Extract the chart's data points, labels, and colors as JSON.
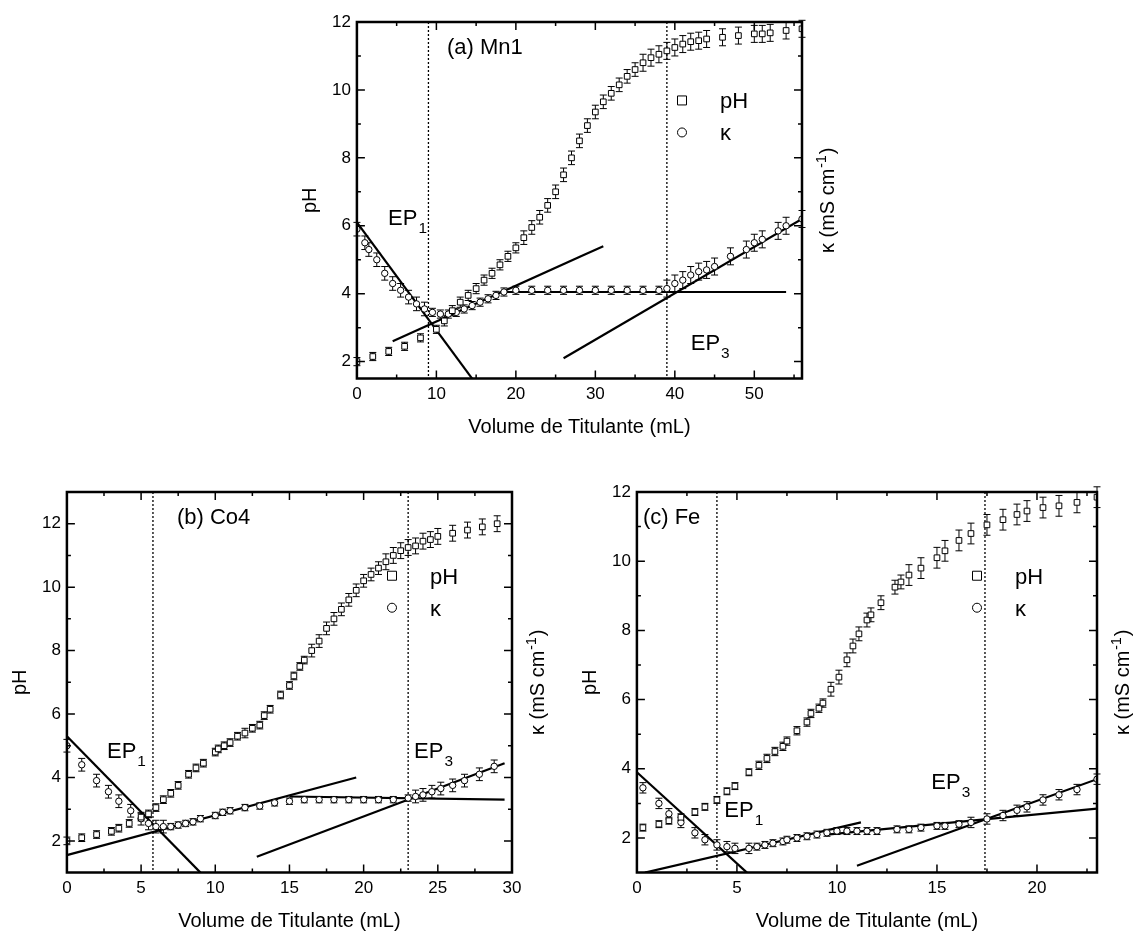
{
  "chart_data": [
    {
      "type": "scatter",
      "title": "(a) Mn1",
      "xlabel": "Volume de Titulante (mL)",
      "ylabel": "pH",
      "y2label": "κ (mS cm$^{-1}$)",
      "legend": "right",
      "xlim": [
        0,
        56
      ],
      "ylim": [
        1.5,
        12
      ],
      "xticks": [
        0,
        {
          "value": 5,
          "label": null
        },
        10,
        {
          "value": 15,
          "label": null
        },
        20,
        {
          "value": 25,
          "label": null
        },
        30,
        {
          "value": 35,
          "label": null
        },
        40,
        {
          "value": 45,
          "label": null
        },
        50,
        {
          "value": 55,
          "label": null
        }
      ],
      "yticks": [
        2,
        {
          "value": 3,
          "label": null
        },
        4,
        {
          "value": 5,
          "label": null
        },
        6,
        {
          "value": 7,
          "label": null
        },
        8,
        {
          "value": 9,
          "label": null
        },
        10,
        {
          "value": 11,
          "label": null
        },
        12
      ],
      "series": [
        {
          "name": "pH",
          "type": "scatter",
          "marker": "square",
          "color": "#000000",
          "x": [
            0,
            2,
            4,
            6,
            8,
            10,
            11,
            12,
            13,
            14,
            15,
            16,
            17,
            18,
            19,
            20,
            21,
            22,
            23,
            24,
            25,
            26,
            27,
            28,
            29,
            30,
            31,
            32,
            33,
            34,
            35,
            36,
            37,
            38,
            39,
            40,
            41,
            42,
            43,
            44,
            46,
            48,
            50,
            51,
            52,
            54,
            56
          ],
          "values": [
            2.0,
            2.15,
            2.3,
            2.45,
            2.7,
            2.95,
            3.2,
            3.5,
            3.75,
            3.95,
            4.15,
            4.4,
            4.6,
            4.85,
            5.1,
            5.35,
            5.65,
            5.95,
            6.25,
            6.6,
            7.0,
            7.5,
            8.0,
            8.5,
            8.95,
            9.35,
            9.65,
            9.9,
            10.15,
            10.4,
            10.6,
            10.8,
            10.95,
            11.05,
            11.15,
            11.25,
            11.35,
            11.42,
            11.45,
            11.5,
            11.55,
            11.6,
            11.65,
            11.65,
            11.68,
            11.75,
            11.8
          ],
          "errors": [
            0.12,
            0.12,
            0.12,
            0.12,
            0.12,
            0.12,
            0.15,
            0.15,
            0.15,
            0.15,
            0.15,
            0.15,
            0.15,
            0.15,
            0.15,
            0.15,
            0.2,
            0.2,
            0.2,
            0.2,
            0.2,
            0.2,
            0.2,
            0.2,
            0.2,
            0.2,
            0.2,
            0.2,
            0.2,
            0.2,
            0.2,
            0.25,
            0.25,
            0.25,
            0.25,
            0.25,
            0.25,
            0.25,
            0.25,
            0.25,
            0.25,
            0.25,
            0.25,
            0.25,
            0.25,
            0.25,
            0.25
          ]
        },
        {
          "name": "κ",
          "type": "scatter",
          "marker": "circle",
          "color": "#000000",
          "x": [
            0,
            1,
            1.5,
            2.5,
            3.5,
            4.5,
            5.5,
            6.5,
            7.5,
            8.5,
            9.5,
            10.5,
            11.5,
            12.5,
            13.5,
            14.5,
            15.5,
            16.5,
            17.5,
            18.5,
            20,
            22,
            24,
            26,
            28,
            30,
            32,
            34,
            36,
            38,
            39,
            40,
            41,
            42,
            43,
            44,
            45,
            47,
            49,
            50,
            51,
            53,
            54,
            56
          ],
          "values": [
            5.9,
            5.5,
            5.3,
            5.0,
            4.6,
            4.3,
            4.1,
            3.9,
            3.7,
            3.55,
            3.45,
            3.4,
            3.4,
            3.45,
            3.55,
            3.65,
            3.75,
            3.85,
            3.95,
            4.05,
            4.1,
            4.1,
            4.1,
            4.1,
            4.1,
            4.1,
            4.1,
            4.1,
            4.1,
            4.1,
            4.15,
            4.3,
            4.4,
            4.55,
            4.65,
            4.7,
            4.8,
            5.1,
            5.3,
            5.5,
            5.6,
            5.85,
            6.0,
            6.2
          ],
          "errors": [
            0.2,
            0.2,
            0.2,
            0.2,
            0.2,
            0.2,
            0.2,
            0.2,
            0.2,
            0.2,
            0.12,
            0.12,
            0.12,
            0.12,
            0.12,
            0.12,
            0.12,
            0.12,
            0.12,
            0.12,
            0.12,
            0.12,
            0.12,
            0.12,
            0.12,
            0.12,
            0.12,
            0.12,
            0.12,
            0.12,
            0.25,
            0.25,
            0.25,
            0.25,
            0.25,
            0.25,
            0.25,
            0.25,
            0.25,
            0.25,
            0.25,
            0.25,
            0.25,
            0.25
          ]
        },
        {
          "type": "line",
          "color": "#000000",
          "x": [
            0,
            14.5
          ],
          "values": [
            6.1,
            1.5
          ]
        },
        {
          "type": "line",
          "color": "#000000",
          "x": [
            4.5,
            31
          ],
          "values": [
            2.6,
            5.4
          ]
        },
        {
          "type": "line",
          "color": "#000000",
          "x": [
            18,
            54
          ],
          "values": [
            4.05,
            4.05
          ]
        },
        {
          "type": "line",
          "color": "#000000",
          "x": [
            26,
            56
          ],
          "values": [
            2.1,
            6.2
          ]
        }
      ],
      "ref_lines": [
        {
          "axis": "x",
          "value": 9,
          "line_style": "dotted",
          "color": "#000000"
        },
        {
          "axis": "x",
          "value": 39,
          "line_style": "dotted",
          "color": "#000000"
        }
      ],
      "annotations": [
        "EP$_{1}$",
        "EP$_{3}$"
      ]
    },
    {
      "type": "scatter",
      "title": "(b) Co4",
      "xlabel": "Volume de Titulante (mL)",
      "ylabel": "pH",
      "y2label": "κ (mS cm$^{-1}$)",
      "legend": "right",
      "xlim": [
        0,
        30
      ],
      "ylim": [
        1,
        13
      ],
      "xticks": [
        0,
        {
          "value": 2.5,
          "label": null
        },
        5,
        {
          "value": 7.5,
          "label": null
        },
        10,
        {
          "value": 12.5,
          "label": null
        },
        15,
        {
          "value": 17.5,
          "label": null
        },
        20,
        {
          "value": 22.5,
          "label": null
        },
        25,
        {
          "value": 27.5,
          "label": null
        },
        30
      ],
      "yticks": [
        2,
        {
          "value": 3,
          "label": null
        },
        4,
        {
          "value": 5,
          "label": null
        },
        6,
        {
          "value": 7,
          "label": null
        },
        8,
        {
          "value": 9,
          "label": null
        },
        10,
        {
          "value": 11,
          "label": null
        },
        12
      ],
      "series": [
        {
          "name": "pH",
          "type": "scatter",
          "marker": "square",
          "color": "#000000",
          "x": [
            0,
            1,
            2,
            3,
            3.5,
            4.2,
            5,
            5.5,
            6,
            6.5,
            7,
            7.5,
            8.2,
            8.7,
            9.2,
            10,
            10.2,
            10.6,
            11,
            11.5,
            12,
            12.5,
            13,
            13.3,
            13.7,
            14.4,
            15,
            15.3,
            15.7,
            16,
            16.5,
            17,
            17.5,
            18,
            18.5,
            19,
            19.5,
            20,
            20.5,
            21,
            21.5,
            22,
            22.5,
            23,
            23.5,
            24,
            24.5,
            25,
            26,
            27,
            28,
            29
          ],
          "values": [
            2.0,
            2.1,
            2.2,
            2.3,
            2.4,
            2.55,
            2.75,
            2.85,
            3.05,
            3.3,
            3.5,
            3.75,
            4.1,
            4.3,
            4.45,
            4.8,
            4.9,
            5.0,
            5.1,
            5.3,
            5.4,
            5.55,
            5.65,
            5.95,
            6.15,
            6.6,
            6.9,
            7.2,
            7.5,
            7.7,
            8.0,
            8.3,
            8.7,
            9.0,
            9.3,
            9.6,
            9.9,
            10.2,
            10.4,
            10.6,
            10.8,
            11.0,
            11.15,
            11.25,
            11.3,
            11.45,
            11.5,
            11.6,
            11.7,
            11.8,
            11.9,
            12.0
          ],
          "errors": [
            0.12,
            0.12,
            0.12,
            0.12,
            0.12,
            0.12,
            0.12,
            0.12,
            0.12,
            0.12,
            0.12,
            0.12,
            0.12,
            0.12,
            0.12,
            0.12,
            0.12,
            0.12,
            0.12,
            0.12,
            0.15,
            0.12,
            0.12,
            0.12,
            0.12,
            0.12,
            0.12,
            0.12,
            0.12,
            0.12,
            0.2,
            0.2,
            0.2,
            0.2,
            0.2,
            0.2,
            0.2,
            0.2,
            0.2,
            0.2,
            0.25,
            0.25,
            0.25,
            0.25,
            0.25,
            0.25,
            0.25,
            0.25,
            0.25,
            0.25,
            0.25,
            0.25
          ]
        },
        {
          "name": "κ",
          "type": "scatter",
          "marker": "circle",
          "color": "#000000",
          "x": [
            0,
            1,
            2,
            2.8,
            3.5,
            4.3,
            5,
            5.5,
            6,
            6.5,
            7,
            7.5,
            8,
            8.5,
            9,
            10,
            10.5,
            11,
            12,
            13,
            14,
            15,
            16,
            17,
            18,
            19,
            20,
            21,
            22,
            23,
            23.5,
            24,
            24.6,
            25.2,
            26,
            26.8,
            27.8,
            28.8
          ],
          "values": [
            5.0,
            4.4,
            3.9,
            3.55,
            3.25,
            2.95,
            2.7,
            2.55,
            2.45,
            2.45,
            2.45,
            2.5,
            2.55,
            2.6,
            2.7,
            2.8,
            2.9,
            2.95,
            3.05,
            3.1,
            3.2,
            3.25,
            3.3,
            3.3,
            3.3,
            3.3,
            3.3,
            3.3,
            3.3,
            3.35,
            3.4,
            3.45,
            3.55,
            3.65,
            3.75,
            3.9,
            4.1,
            4.35
          ],
          "errors": [
            0.2,
            0.2,
            0.2,
            0.2,
            0.2,
            0.2,
            0.2,
            0.2,
            0.2,
            0.2,
            0.1,
            0.1,
            0.1,
            0.1,
            0.1,
            0.1,
            0.1,
            0.1,
            0.1,
            0.1,
            0.1,
            0.1,
            0.1,
            0.1,
            0.1,
            0.1,
            0.1,
            0.1,
            0.1,
            0.1,
            0.2,
            0.2,
            0.2,
            0.2,
            0.2,
            0.2,
            0.2,
            0.2
          ]
        },
        {
          "type": "line",
          "color": "#000000",
          "x": [
            0,
            9
          ],
          "values": [
            5.3,
            1
          ]
        },
        {
          "type": "line",
          "color": "#000000",
          "x": [
            0,
            19.5
          ],
          "values": [
            1.55,
            4.0
          ]
        },
        {
          "type": "line",
          "color": "#000000",
          "x": [
            15,
            29.5
          ],
          "values": [
            3.4,
            3.3
          ]
        },
        {
          "type": "line",
          "color": "#000000",
          "x": [
            12.8,
            29.5
          ],
          "values": [
            1.5,
            4.45
          ]
        }
      ],
      "ref_lines": [
        {
          "axis": "x",
          "value": 5.8,
          "line_style": "dotted",
          "color": "#000000"
        },
        {
          "axis": "x",
          "value": 23,
          "line_style": "dotted",
          "color": "#000000"
        }
      ],
      "annotations": [
        "EP$_{1}$",
        "EP$_{3}$"
      ]
    },
    {
      "type": "scatter",
      "title": "(c) Fe",
      "xlabel": "Volume de Titulante (mL)",
      "ylabel": "pH",
      "y2label": "κ (mS cm$^{-1}$)",
      "legend": "right",
      "xlim": [
        0,
        23
      ],
      "ylim": [
        1,
        12
      ],
      "xticks": [
        0,
        {
          "value": 2.5,
          "label": null
        },
        5,
        {
          "value": 7.5,
          "label": null
        },
        10,
        {
          "value": 12.5,
          "label": null
        },
        15,
        {
          "value": 17.5,
          "label": null
        },
        20,
        {
          "value": 22.5,
          "label": null
        }
      ],
      "yticks": [
        2,
        {
          "value": 3,
          "label": null
        },
        4,
        {
          "value": 5,
          "label": null
        },
        6,
        {
          "value": 7,
          "label": null
        },
        8,
        {
          "value": 9,
          "label": null
        },
        10,
        {
          "value": 11,
          "label": null
        },
        12
      ],
      "series": [
        {
          "name": "pH",
          "type": "scatter",
          "marker": "square",
          "color": "#000000",
          "x": [
            0.3,
            1.1,
            1.6,
            2.2,
            2.9,
            3.4,
            4,
            4.5,
            4.9,
            5.6,
            6.1,
            6.5,
            6.9,
            7.3,
            7.5,
            8,
            8.5,
            8.7,
            9.1,
            9.3,
            9.7,
            10.1,
            10.5,
            10.8,
            11.1,
            11.5,
            11.7,
            12.2,
            12.9,
            13.2,
            13.6,
            14.2,
            15,
            15.4,
            16.1,
            16.7,
            17.5,
            18.3,
            19,
            19.5,
            20.3,
            21.1,
            22,
            23
          ],
          "values": [
            2.3,
            2.4,
            2.5,
            2.6,
            2.75,
            2.9,
            3.1,
            3.35,
            3.5,
            3.9,
            4.1,
            4.3,
            4.5,
            4.65,
            4.8,
            5.1,
            5.35,
            5.6,
            5.75,
            5.9,
            6.3,
            6.65,
            7.15,
            7.55,
            7.9,
            8.3,
            8.45,
            8.8,
            9.25,
            9.4,
            9.6,
            9.8,
            10.1,
            10.3,
            10.6,
            10.8,
            11.05,
            11.2,
            11.35,
            11.45,
            11.55,
            11.6,
            11.7,
            11.85
          ],
          "errors": [
            0.1,
            0.1,
            0.1,
            0.1,
            0.1,
            0.1,
            0.1,
            0.1,
            0.1,
            0.1,
            0.12,
            0.12,
            0.12,
            0.12,
            0.12,
            0.12,
            0.12,
            0.12,
            0.12,
            0.12,
            0.2,
            0.2,
            0.2,
            0.2,
            0.2,
            0.2,
            0.2,
            0.2,
            0.2,
            0.2,
            0.3,
            0.3,
            0.3,
            0.3,
            0.3,
            0.3,
            0.3,
            0.3,
            0.3,
            0.3,
            0.3,
            0.3,
            0.3,
            0.3
          ]
        },
        {
          "name": "κ",
          "type": "scatter",
          "marker": "circle",
          "color": "#000000",
          "x": [
            0.3,
            1.1,
            1.6,
            2.2,
            2.9,
            3.4,
            4,
            4.5,
            4.9,
            5.6,
            6,
            6.4,
            6.8,
            7.3,
            7.5,
            8,
            8.5,
            9,
            9.5,
            10,
            10.5,
            11,
            11.5,
            12,
            13,
            13.6,
            14.2,
            15,
            15.4,
            16.1,
            16.7,
            17.5,
            18.3,
            19,
            19.5,
            20.3,
            21.1,
            22,
            23
          ],
          "values": [
            3.45,
            3.0,
            2.7,
            2.45,
            2.15,
            1.95,
            1.8,
            1.75,
            1.7,
            1.7,
            1.75,
            1.8,
            1.85,
            1.9,
            1.95,
            2.0,
            2.05,
            2.1,
            2.15,
            2.2,
            2.2,
            2.2,
            2.2,
            2.2,
            2.25,
            2.25,
            2.3,
            2.35,
            2.35,
            2.4,
            2.45,
            2.55,
            2.65,
            2.8,
            2.9,
            3.1,
            3.25,
            3.4,
            3.7
          ],
          "errors": [
            0.15,
            0.15,
            0.15,
            0.15,
            0.15,
            0.15,
            0.15,
            0.15,
            0.15,
            0.15,
            0.1,
            0.1,
            0.1,
            0.1,
            0.1,
            0.1,
            0.1,
            0.1,
            0.1,
            0.1,
            0.1,
            0.1,
            0.1,
            0.1,
            0.1,
            0.1,
            0.1,
            0.1,
            0.1,
            0.1,
            0.15,
            0.15,
            0.15,
            0.15,
            0.15,
            0.15,
            0.15,
            0.15,
            0.15
          ]
        },
        {
          "type": "line",
          "color": "#000000",
          "x": [
            0,
            5.5
          ],
          "values": [
            3.9,
            1.0
          ]
        },
        {
          "type": "line",
          "color": "#000000",
          "x": [
            0.4,
            11.2
          ],
          "values": [
            1.0,
            2.45
          ]
        },
        {
          "type": "line",
          "color": "#000000",
          "x": [
            11,
            23
          ],
          "values": [
            1.2,
            3.7
          ]
        },
        {
          "type": "line",
          "color": "#000000",
          "x": [
            9.5,
            23
          ],
          "values": [
            2.1,
            2.85
          ]
        }
      ],
      "ref_lines": [
        {
          "axis": "x",
          "value": 4,
          "line_style": "dotted",
          "color": "#000000"
        },
        {
          "axis": "x",
          "value": 17.4,
          "line_style": "dotted",
          "color": "#000000"
        }
      ],
      "annotations": [
        "EP$_{1}$",
        "EP$_{3}$"
      ]
    }
  ]
}
